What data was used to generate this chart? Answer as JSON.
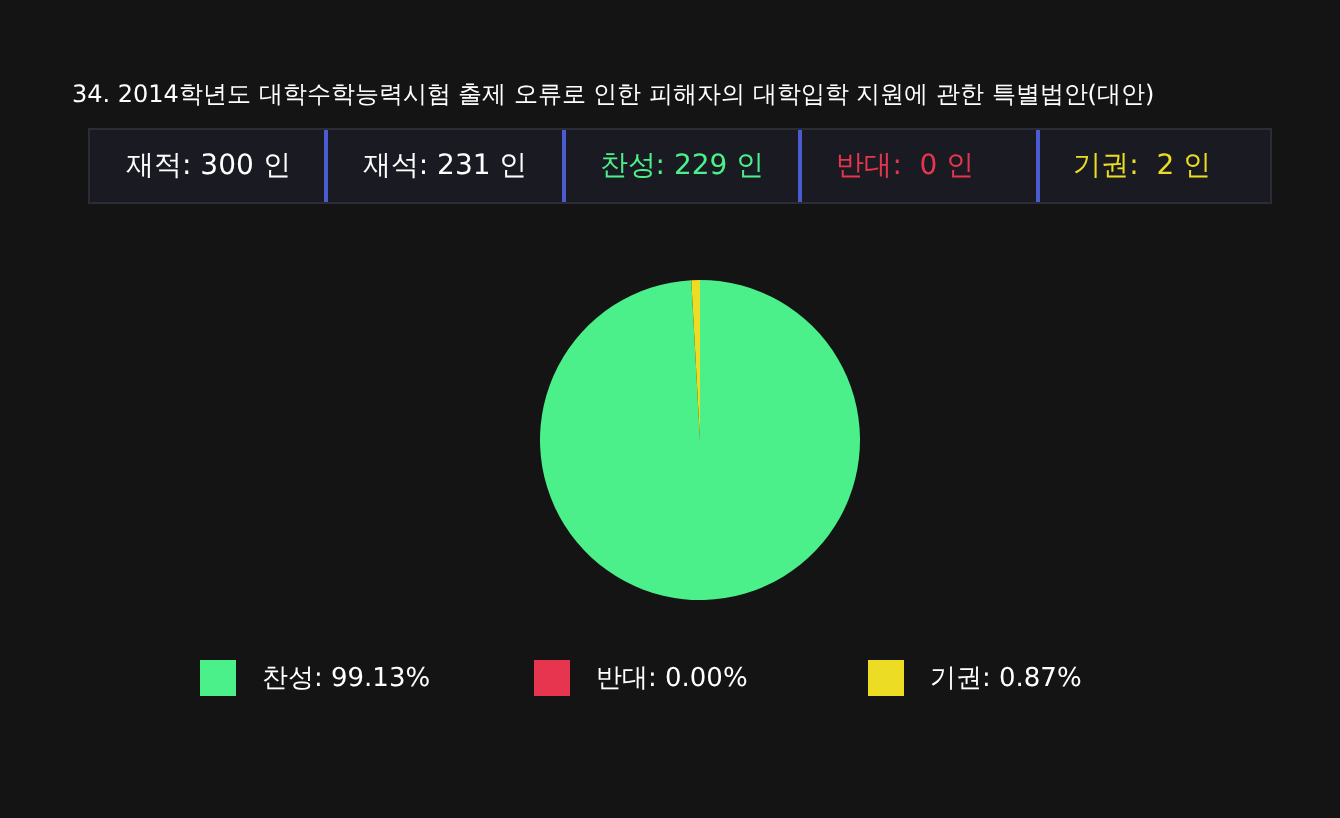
{
  "chart_data": {
    "type": "pie",
    "title": "34. 2014학년도 대학수학능력시험 출제 오류로 인한 피해자의 대학입학 지원에 관한 특별법안(대안)",
    "annotations": [
      "재적: 300 인",
      "재석: 231 인",
      "찬성: 229 인",
      "반대:  0 인",
      "기권:  2 인"
    ],
    "categories": [
      "찬성",
      "반대",
      "기권"
    ],
    "values": [
      99.13,
      0,
      0.87
    ],
    "value_labels": [
      "99.13%",
      "0.00%",
      "0.87%"
    ],
    "colors": [
      "#4cf08a",
      "#e8354f",
      "#ecdc24"
    ],
    "legend": "bottom"
  }
}
